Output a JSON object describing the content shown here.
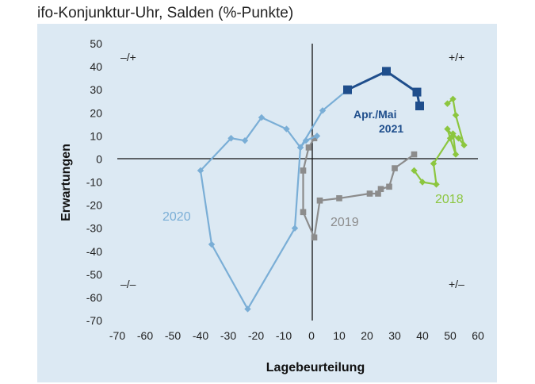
{
  "chart_data": {
    "type": "scatter",
    "title": "ifo-Konjunktur-Uhr, Salden (%-Punkte)",
    "xlabel": "Lagebeurteilung",
    "ylabel": "Erwartungen",
    "xlim": [
      -70,
      60
    ],
    "ylim": [
      -70,
      50
    ],
    "xticks": [
      -70,
      -60,
      -50,
      -40,
      -30,
      -20,
      -10,
      0,
      10,
      20,
      30,
      40,
      50,
      60
    ],
    "yticks": [
      -70,
      -60,
      -50,
      -40,
      -30,
      -20,
      -10,
      0,
      10,
      20,
      30,
      40,
      50
    ],
    "quadrants": [
      "–/+",
      "+/+",
      "–/–",
      "+/–"
    ],
    "grid": false,
    "background": "#dce9f3",
    "series": [
      {
        "name": "2018",
        "color": "#8cc63f",
        "marker": "diamond",
        "points": [
          [
            49,
            24
          ],
          [
            51,
            26
          ],
          [
            52,
            19
          ],
          [
            55,
            6
          ],
          [
            53,
            9
          ],
          [
            51,
            10
          ],
          [
            49,
            13
          ],
          [
            50,
            9
          ],
          [
            52,
            2
          ],
          [
            51,
            11
          ],
          [
            44,
            -2
          ],
          [
            45,
            -11
          ],
          [
            40,
            -10
          ],
          [
            37,
            -5
          ]
        ]
      },
      {
        "name": "2019",
        "color": "#8c8c8c",
        "marker": "square",
        "points": [
          [
            37,
            2
          ],
          [
            30,
            -4
          ],
          [
            28,
            -12
          ],
          [
            25,
            -13
          ],
          [
            24,
            -15
          ],
          [
            21,
            -15
          ],
          [
            10,
            -17
          ],
          [
            3,
            -18
          ],
          [
            1,
            -34
          ],
          [
            -3,
            -23
          ],
          [
            -3,
            -5
          ],
          [
            -1,
            5
          ],
          [
            1,
            9
          ]
        ]
      },
      {
        "name": "2020",
        "color": "#7aaed6",
        "marker": "diamond",
        "points": [
          [
            2,
            10
          ],
          [
            -2,
            8
          ],
          [
            -4,
            5
          ],
          [
            -9,
            13
          ],
          [
            -18,
            18
          ],
          [
            -24,
            8
          ],
          [
            -29,
            9
          ],
          [
            -40,
            -5
          ],
          [
            -36,
            -37
          ],
          [
            -23,
            -65
          ],
          [
            -6,
            -30
          ],
          [
            -4,
            5
          ],
          [
            4,
            21
          ],
          [
            13,
            30
          ]
        ]
      },
      {
        "name": "Apr./Mai 2021",
        "color": "#1f4e8c",
        "marker": "square",
        "points": [
          [
            13,
            30
          ],
          [
            27,
            38
          ],
          [
            38,
            29
          ],
          [
            39,
            23
          ]
        ]
      }
    ],
    "series_labels": {
      "2018": "2018",
      "2019": "2019",
      "2020": "2020",
      "2021_line1": "Apr./Mai",
      "2021_line2": "2021"
    }
  }
}
